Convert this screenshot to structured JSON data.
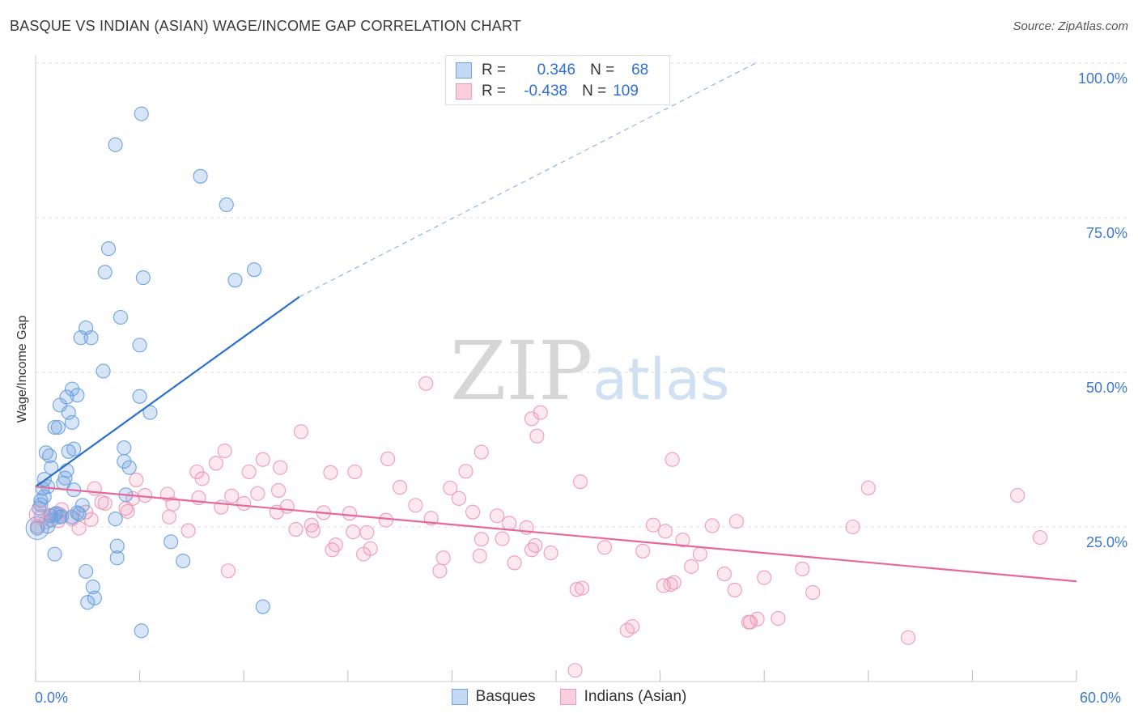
{
  "title": "BASQUE VS INDIAN (ASIAN) WAGE/INCOME GAP CORRELATION CHART",
  "source": "Source: ZipAtlas.com",
  "watermark": {
    "zip": "ZIP",
    "atlas": "atlas"
  },
  "legend": {
    "rows": [
      {
        "r_label": "R =",
        "r_value": "0.346",
        "n_label": "N =",
        "n_value": "68"
      },
      {
        "r_label": "R =",
        "r_value": "-0.438",
        "n_label": "N =",
        "n_value": "109"
      }
    ]
  },
  "bottom_legend": [
    "Basques",
    "Indians (Asian)"
  ],
  "chart_data": {
    "type": "scatter",
    "title": "BASQUE VS INDIAN (ASIAN) WAGE/INCOME GAP CORRELATION CHART",
    "xlabel": "",
    "ylabel": "Wage/Income Gap",
    "xlim": [
      0,
      60
    ],
    "ylim": [
      0,
      105
    ],
    "x_tick_labels": [
      "0.0%",
      "60.0%"
    ],
    "y_ticks": [
      25,
      50,
      75,
      100
    ],
    "y_tick_labels": [
      "25.0%",
      "50.0%",
      "75.0%",
      "100.0%"
    ],
    "grid": true,
    "colors": {
      "basques": "#6fa3e0",
      "indians": "#ef9ab8",
      "basques_line": "#2a6fcf",
      "indians_line": "#e8679a",
      "tick": "#3b78d4"
    },
    "series": [
      {
        "name": "Basques",
        "trend": {
          "x": [
            0,
            15.2
          ],
          "y": [
            31.5,
            62.2
          ],
          "dashed_to": [
            41.5,
            100
          ]
        },
        "points": [
          [
            6.1,
            91.8
          ],
          [
            4.6,
            86.8
          ],
          [
            9.5,
            81.7
          ],
          [
            11.0,
            77.1
          ],
          [
            4.2,
            70.0
          ],
          [
            4.0,
            66.2
          ],
          [
            6.2,
            65.3
          ],
          [
            12.6,
            66.6
          ],
          [
            11.5,
            64.9
          ],
          [
            4.9,
            58.9
          ],
          [
            2.9,
            57.2
          ],
          [
            2.6,
            55.6
          ],
          [
            3.2,
            55.6
          ],
          [
            6.0,
            54.4
          ],
          [
            3.9,
            50.2
          ],
          [
            2.1,
            47.3
          ],
          [
            2.4,
            46.3
          ],
          [
            1.8,
            46.0
          ],
          [
            6.0,
            46.1
          ],
          [
            1.4,
            44.7
          ],
          [
            6.6,
            43.5
          ],
          [
            1.9,
            43.5
          ],
          [
            2.1,
            41.9
          ],
          [
            1.1,
            41.1
          ],
          [
            1.3,
            41.1
          ],
          [
            0.6,
            37.0
          ],
          [
            1.9,
            37.2
          ],
          [
            2.2,
            37.6
          ],
          [
            0.8,
            36.5
          ],
          [
            5.1,
            37.8
          ],
          [
            5.1,
            35.6
          ],
          [
            5.4,
            34.6
          ],
          [
            0.9,
            34.6
          ],
          [
            1.8,
            34.1
          ],
          [
            0.5,
            32.7
          ],
          [
            1.7,
            32.9
          ],
          [
            1.6,
            32.1
          ],
          [
            0.7,
            31.5
          ],
          [
            0.4,
            31.2
          ],
          [
            2.2,
            31.0
          ],
          [
            0.5,
            29.9
          ],
          [
            5.2,
            30.2
          ],
          [
            0.3,
            29.3
          ],
          [
            0.3,
            28.6
          ],
          [
            2.7,
            28.5
          ],
          [
            0.2,
            28.0
          ],
          [
            1.2,
            27.2
          ],
          [
            1.1,
            27.0
          ],
          [
            2.4,
            27.3
          ],
          [
            2.5,
            27.1
          ],
          [
            0.9,
            26.8
          ],
          [
            1.5,
            26.7
          ],
          [
            2.1,
            26.6
          ],
          [
            1.4,
            26.6
          ],
          [
            4.6,
            26.3
          ],
          [
            0.7,
            25.1
          ],
          [
            0.9,
            26.1
          ],
          [
            0.1,
            24.8
          ],
          [
            7.8,
            22.6
          ],
          [
            4.7,
            21.9
          ],
          [
            1.1,
            20.6
          ],
          [
            4.7,
            20.0
          ],
          [
            8.5,
            19.5
          ],
          [
            2.9,
            17.8
          ],
          [
            3.3,
            15.3
          ],
          [
            3.4,
            13.5
          ],
          [
            3.0,
            12.8
          ],
          [
            13.1,
            12.1
          ],
          [
            6.1,
            8.2
          ]
        ]
      },
      {
        "name": "Indians (Asian)",
        "trend": {
          "x": [
            0,
            60
          ],
          "y": [
            31.5,
            16.2
          ]
        },
        "points": [
          [
            22.5,
            48.2
          ],
          [
            29.1,
            43.5
          ],
          [
            28.6,
            42.5
          ],
          [
            28.9,
            39.7
          ],
          [
            15.3,
            40.4
          ],
          [
            10.9,
            37.3
          ],
          [
            25.7,
            37.1
          ],
          [
            20.3,
            36.0
          ],
          [
            10.4,
            35.3
          ],
          [
            13.1,
            35.9
          ],
          [
            36.7,
            35.9
          ],
          [
            14.1,
            34.6
          ],
          [
            9.3,
            33.9
          ],
          [
            12.3,
            33.9
          ],
          [
            17.0,
            33.8
          ],
          [
            18.4,
            33.9
          ],
          [
            24.8,
            34.0
          ],
          [
            9.6,
            32.8
          ],
          [
            31.4,
            32.3
          ],
          [
            5.8,
            32.6
          ],
          [
            3.4,
            31.2
          ],
          [
            14.0,
            30.9
          ],
          [
            21.0,
            31.4
          ],
          [
            23.9,
            31.3
          ],
          [
            48.0,
            31.3
          ],
          [
            12.8,
            30.4
          ],
          [
            7.6,
            30.3
          ],
          [
            6.3,
            30.1
          ],
          [
            11.3,
            30.0
          ],
          [
            56.6,
            30.1
          ],
          [
            9.4,
            29.7
          ],
          [
            5.6,
            29.6
          ],
          [
            24.4,
            29.6
          ],
          [
            3.8,
            29.0
          ],
          [
            4.0,
            28.8
          ],
          [
            7.9,
            28.7
          ],
          [
            12.0,
            28.8
          ],
          [
            21.9,
            28.5
          ],
          [
            14.5,
            28.3
          ],
          [
            10.7,
            28.2
          ],
          [
            5.2,
            28.0
          ],
          [
            1.5,
            27.8
          ],
          [
            2.9,
            27.4
          ],
          [
            5.3,
            27.5
          ],
          [
            13.9,
            27.4
          ],
          [
            16.6,
            27.3
          ],
          [
            25.2,
            27.4
          ],
          [
            18.1,
            27.2
          ],
          [
            1.4,
            27.0
          ],
          [
            0.8,
            26.9
          ],
          [
            26.6,
            26.8
          ],
          [
            0.3,
            26.7
          ],
          [
            7.7,
            26.6
          ],
          [
            3.2,
            26.2
          ],
          [
            2.1,
            26.3
          ],
          [
            22.8,
            26.4
          ],
          [
            1.3,
            26.0
          ],
          [
            40.4,
            25.9
          ],
          [
            0.6,
            25.8
          ],
          [
            20.2,
            26.1
          ],
          [
            27.3,
            25.6
          ],
          [
            15.9,
            25.3
          ],
          [
            35.6,
            25.3
          ],
          [
            39.0,
            25.2
          ],
          [
            0.1,
            25.1
          ],
          [
            47.1,
            25.0
          ],
          [
            28.3,
            24.9
          ],
          [
            2.5,
            24.8
          ],
          [
            8.8,
            24.4
          ],
          [
            15.0,
            24.6
          ],
          [
            16.0,
            24.4
          ],
          [
            18.3,
            24.2
          ],
          [
            19.1,
            24.1
          ],
          [
            36.3,
            24.3
          ],
          [
            57.9,
            23.3
          ],
          [
            26.9,
            23.1
          ],
          [
            25.7,
            23.0
          ],
          [
            37.3,
            22.9
          ],
          [
            17.3,
            22.1
          ],
          [
            19.3,
            21.5
          ],
          [
            28.8,
            22.0
          ],
          [
            32.8,
            21.7
          ],
          [
            17.1,
            21.3
          ],
          [
            18.9,
            20.6
          ],
          [
            28.6,
            21.3
          ],
          [
            29.7,
            20.8
          ],
          [
            38.3,
            20.6
          ],
          [
            35.0,
            21.1
          ],
          [
            23.5,
            20.0
          ],
          [
            25.6,
            20.3
          ],
          [
            27.6,
            19.2
          ],
          [
            37.8,
            18.6
          ],
          [
            44.2,
            18.2
          ],
          [
            23.3,
            17.9
          ],
          [
            11.1,
            17.9
          ],
          [
            39.7,
            17.4
          ],
          [
            36.8,
            16.0
          ],
          [
            42.0,
            16.8
          ],
          [
            36.2,
            15.5
          ],
          [
            36.6,
            15.7
          ],
          [
            31.5,
            15.1
          ],
          [
            40.3,
            14.8
          ],
          [
            44.8,
            14.4
          ],
          [
            31.2,
            14.9
          ],
          [
            41.1,
            9.6
          ],
          [
            34.4,
            8.9
          ],
          [
            41.2,
            9.6
          ],
          [
            34.1,
            8.3
          ],
          [
            41.6,
            10.1
          ],
          [
            42.8,
            10.2
          ],
          [
            50.3,
            7.1
          ],
          [
            31.1,
            1.8
          ]
        ]
      }
    ]
  }
}
